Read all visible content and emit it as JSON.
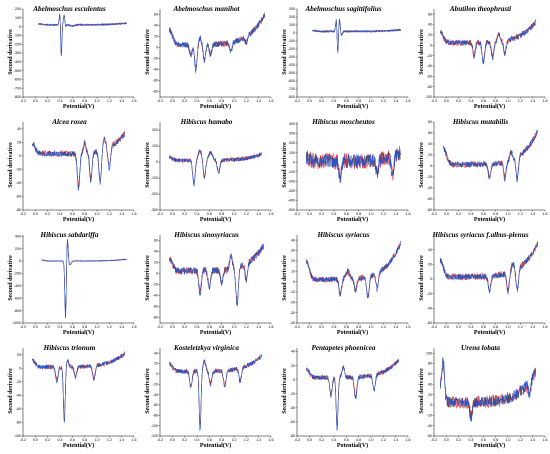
{
  "figure": {
    "ylabel": "Second derivative",
    "xlabel": "Potential(V)",
    "colors": {
      "series_a": "#ff1a1a",
      "series_b": "#1f55d8",
      "series_c": "#333333",
      "axis": "#000000"
    }
  },
  "chart_data": [
    {
      "type": "line",
      "title": "Abelmoschus esculentus",
      "xlabel": "Potential(V)",
      "ylabel": "Second derivative",
      "x_ticks": [
        -0.2,
        0.0,
        0.2,
        0.4,
        0.6,
        0.8,
        1.0,
        1.2,
        1.4,
        1.6
      ],
      "xlim": [
        -0.2,
        1.6
      ],
      "y_ticks": [
        -800,
        -700,
        -600,
        -500,
        -400,
        -300,
        -200,
        -100,
        0,
        100,
        200
      ],
      "ylim": [
        -800,
        200
      ],
      "x_range": [
        0.05,
        1.48
      ],
      "features": [
        {
          "x": 0.42,
          "y": -380,
          "w": 0.01
        },
        {
          "x": 0.4,
          "y": 150,
          "w": 0.012
        },
        {
          "x": 0.47,
          "y": 150,
          "w": 0.012
        },
        {
          "x": 0.48,
          "y": -60,
          "w": 0.012
        },
        {
          "x": 0.6,
          "y": -15,
          "w": 0.03
        }
      ],
      "baseline": 20,
      "slope": 0,
      "end_rise": 20,
      "noise": 10
    },
    {
      "type": "line",
      "title": "Abelmoschus manihot",
      "xlabel": "Potential(V)",
      "ylabel": "Second derivative",
      "x_ticks": [
        -0.2,
        0.0,
        0.2,
        0.4,
        0.6,
        0.8,
        1.0,
        1.2,
        1.4,
        1.6
      ],
      "xlim": [
        -0.2,
        1.6
      ],
      "y_ticks": [
        -80,
        -60,
        -40,
        -20,
        0,
        20,
        40,
        60
      ],
      "ylim": [
        -90,
        70
      ],
      "x_range": [
        -0.05,
        1.5
      ],
      "features": [
        {
          "x": 0.38,
          "y": -45,
          "w": 0.02
        },
        {
          "x": 0.3,
          "y": -20,
          "w": 0.02
        },
        {
          "x": 0.52,
          "y": -28,
          "w": 0.02
        },
        {
          "x": 0.62,
          "y": -18,
          "w": 0.02
        },
        {
          "x": 0.45,
          "y": 12,
          "w": 0.02
        },
        {
          "x": 0.95,
          "y": -15,
          "w": 0.02
        },
        {
          "x": 1.2,
          "y": -12,
          "w": 0.02
        }
      ],
      "baseline": 5,
      "slope": 0,
      "end_rise": 55,
      "noise": 5
    },
    {
      "type": "line",
      "title": "Abelmoschus sagittifolius",
      "xlabel": "Potential(V)",
      "ylabel": "Second derivative",
      "x_ticks": [
        -0.2,
        0.0,
        0.2,
        0.4,
        0.6,
        0.8,
        1.0,
        1.2,
        1.4,
        1.6
      ],
      "xlim": [
        -0.2,
        1.6
      ],
      "y_ticks": [
        -800,
        -700,
        -600,
        -500,
        -400,
        -300,
        -200,
        -100,
        0,
        100,
        200,
        300
      ],
      "ylim": [
        -800,
        300
      ],
      "x_range": [
        0.05,
        1.48
      ],
      "features": [
        {
          "x": 0.46,
          "y": -300,
          "w": 0.01
        },
        {
          "x": 0.44,
          "y": 160,
          "w": 0.012
        },
        {
          "x": 0.49,
          "y": 150,
          "w": 0.012
        },
        {
          "x": 0.52,
          "y": -50,
          "w": 0.015
        }
      ],
      "baseline": 20,
      "slope": 0,
      "end_rise": 20,
      "noise": 12
    },
    {
      "type": "line",
      "title": "Abutilon theophrasti",
      "xlabel": "Potential(V)",
      "ylabel": "Second derivative",
      "x_ticks": [
        -0.2,
        0.0,
        0.2,
        0.4,
        0.6,
        0.8,
        1.0,
        1.2,
        1.4,
        1.6
      ],
      "xlim": [
        -0.2,
        1.6
      ],
      "y_ticks": [
        -100,
        -80,
        -60,
        -40,
        -20,
        0,
        20,
        40,
        60
      ],
      "ylim": [
        -100,
        70
      ],
      "x_range": [
        -0.1,
        1.45
      ],
      "features": [
        {
          "x": 0.6,
          "y": -40,
          "w": 0.02
        },
        {
          "x": 0.45,
          "y": -25,
          "w": 0.02
        },
        {
          "x": 0.75,
          "y": -30,
          "w": 0.02
        },
        {
          "x": 0.95,
          "y": -25,
          "w": 0.02
        },
        {
          "x": 0.85,
          "y": 15,
          "w": 0.02
        }
      ],
      "baseline": 5,
      "slope": 0,
      "end_rise": 40,
      "noise": 5
    },
    {
      "type": "line",
      "title": "Alcea rosea",
      "xlabel": "Potential(V)",
      "ylabel": "Second derivative",
      "x_ticks": [
        -0.2,
        0.0,
        0.2,
        0.4,
        0.6,
        0.8,
        1.0,
        1.2,
        1.4,
        1.6
      ],
      "xlim": [
        -0.2,
        1.6
      ],
      "y_ticks": [
        -80,
        -60,
        -40,
        -20,
        0,
        20,
        40
      ],
      "ylim": [
        -80,
        50
      ],
      "x_range": [
        -0.05,
        1.45
      ],
      "features": [
        {
          "x": 0.7,
          "y": -50,
          "w": 0.02
        },
        {
          "x": 0.9,
          "y": -40,
          "w": 0.02
        },
        {
          "x": 1.05,
          "y": -45,
          "w": 0.02
        },
        {
          "x": 1.2,
          "y": -30,
          "w": 0.02
        },
        {
          "x": 0.8,
          "y": 15,
          "w": 0.02
        },
        {
          "x": 1.12,
          "y": 15,
          "w": 0.02
        }
      ],
      "baseline": 3,
      "slope": 0,
      "end_rise": 30,
      "noise": 4
    },
    {
      "type": "line",
      "title": "Hibiscus hamabo",
      "xlabel": "Potential(V)",
      "ylabel": "Second derivative",
      "x_ticks": [
        -0.2,
        0.0,
        0.2,
        0.4,
        0.6,
        0.8,
        1.0,
        1.2,
        1.4,
        1.6
      ],
      "xlim": [
        -0.2,
        1.6
      ],
      "y_ticks": [
        -300,
        -200,
        -100,
        0,
        100,
        200
      ],
      "ylim": [
        -300,
        250
      ],
      "x_range": [
        -0.05,
        1.45
      ],
      "features": [
        {
          "x": 0.35,
          "y": -150,
          "w": 0.02
        },
        {
          "x": 0.52,
          "y": -110,
          "w": 0.02
        },
        {
          "x": 0.75,
          "y": -80,
          "w": 0.02
        },
        {
          "x": 0.45,
          "y": 60,
          "w": 0.03
        },
        {
          "x": 0.62,
          "y": 50,
          "w": 0.03
        }
      ],
      "baseline": 10,
      "slope": 0,
      "end_rise": 40,
      "noise": 12
    },
    {
      "type": "line",
      "title": "Hibiscus moscheutos",
      "xlabel": "Potential(V)",
      "ylabel": "Second derivative",
      "x_ticks": [
        -0.2,
        0.0,
        0.2,
        0.4,
        0.6,
        0.8,
        1.0,
        1.2,
        1.4,
        1.6
      ],
      "xlim": [
        -0.2,
        1.6
      ],
      "y_ticks": [
        -500,
        -400,
        -300,
        -200,
        -100,
        0,
        100,
        200,
        300,
        400
      ],
      "ylim": [
        -500,
        420
      ],
      "x_range": [
        -0.05,
        1.48
      ],
      "features": [
        {
          "x": 0.5,
          "y": -180,
          "w": 0.02
        },
        {
          "x": 1.1,
          "y": -150,
          "w": 0.02
        },
        {
          "x": 1.35,
          "y": -200,
          "w": 0.02
        }
      ],
      "baseline": 10,
      "slope": 0,
      "end_rise": 80,
      "noise": 70
    },
    {
      "type": "line",
      "title": "Hibiscus mutabilis",
      "xlabel": "Potential(V)",
      "ylabel": "Second derivative",
      "x_ticks": [
        -0.2,
        0.0,
        0.2,
        0.4,
        0.6,
        0.8,
        1.0,
        1.2,
        1.4,
        1.6
      ],
      "xlim": [
        -0.2,
        1.6
      ],
      "y_ticks": [
        -80,
        -60,
        -40,
        -20,
        0,
        20,
        40,
        60,
        80
      ],
      "ylim": [
        -80,
        80
      ],
      "x_range": [
        -0.05,
        1.48
      ],
      "features": [
        {
          "x": 0.7,
          "y": -25,
          "w": 0.02
        },
        {
          "x": 0.95,
          "y": -30,
          "w": 0.02
        },
        {
          "x": 1.15,
          "y": -40,
          "w": 0.02
        },
        {
          "x": 1.05,
          "y": 15,
          "w": 0.02
        }
      ],
      "baseline": 3,
      "slope": 0,
      "end_rise": 60,
      "noise": 5
    },
    {
      "type": "line",
      "title": "Hibiscus sabdariffa",
      "xlabel": "Potential(V)",
      "ylabel": "Second derivative",
      "x_ticks": [
        -0.2,
        0.0,
        0.2,
        0.4,
        0.6,
        0.8,
        1.0,
        1.2,
        1.4,
        1.6
      ],
      "xlim": [
        -0.2,
        1.6
      ],
      "y_ticks": [
        -1000,
        -800,
        -600,
        -400,
        -200,
        0,
        200,
        400
      ],
      "ylim": [
        -1000,
        420
      ],
      "x_range": [
        0.1,
        1.48
      ],
      "features": [
        {
          "x": 0.49,
          "y": -900,
          "w": 0.012
        },
        {
          "x": 0.52,
          "y": 380,
          "w": 0.012
        },
        {
          "x": 0.56,
          "y": -60,
          "w": 0.02
        }
      ],
      "baseline": 0,
      "slope": 0,
      "end_rise": 30,
      "noise": 8
    },
    {
      "type": "line",
      "title": "Hibiscus sinosyriacus",
      "xlabel": "Potential(V)",
      "ylabel": "Second derivative",
      "x_ticks": [
        -0.2,
        0.0,
        0.2,
        0.4,
        0.6,
        0.8,
        1.0,
        1.2,
        1.4,
        1.6
      ],
      "xlim": [
        -0.2,
        1.6
      ],
      "y_ticks": [
        -80,
        -60,
        -40,
        -20,
        0,
        20,
        40,
        60
      ],
      "ylim": [
        -90,
        70
      ],
      "x_range": [
        -0.05,
        1.48
      ],
      "features": [
        {
          "x": 0.45,
          "y": -40,
          "w": 0.02
        },
        {
          "x": 0.6,
          "y": -30,
          "w": 0.02
        },
        {
          "x": 0.8,
          "y": -25,
          "w": 0.02
        },
        {
          "x": 1.05,
          "y": -65,
          "w": 0.02
        },
        {
          "x": 0.95,
          "y": 25,
          "w": 0.02
        },
        {
          "x": 1.2,
          "y": -30,
          "w": 0.02
        }
      ],
      "baseline": 5,
      "slope": 0,
      "end_rise": 45,
      "noise": 6
    },
    {
      "type": "line",
      "title": "Hibiscus syriacus",
      "xlabel": "Potential(V)",
      "ylabel": "Second derivative",
      "x_ticks": [
        -0.2,
        0.0,
        0.2,
        0.4,
        0.6,
        0.8,
        1.0,
        1.2,
        1.4,
        1.6
      ],
      "xlim": [
        -0.2,
        1.6
      ],
      "y_ticks": [
        -40,
        -30,
        -20,
        -10,
        0,
        10,
        20,
        30,
        40
      ],
      "ylim": [
        -40,
        45
      ],
      "x_range": [
        -0.05,
        1.48
      ],
      "features": [
        {
          "x": 0.5,
          "y": -15,
          "w": 0.02
        },
        {
          "x": 0.75,
          "y": -12,
          "w": 0.02
        },
        {
          "x": 0.95,
          "y": -20,
          "w": 0.02
        },
        {
          "x": 1.1,
          "y": -15,
          "w": 0.02
        },
        {
          "x": 0.62,
          "y": 8,
          "w": 0.03
        }
      ],
      "baseline": 2,
      "slope": 0,
      "end_rise": 35,
      "noise": 2.5
    },
    {
      "type": "line",
      "title": "Hibiscus syriacus f.albus-plenus",
      "xlabel": "Potential(V)",
      "ylabel": "Second derivative",
      "x_ticks": [
        -0.2,
        0.0,
        0.2,
        0.4,
        0.6,
        0.8,
        1.0,
        1.2,
        1.4,
        1.6
      ],
      "xlim": [
        -0.2,
        1.6
      ],
      "y_ticks": [
        -60,
        -40,
        -20,
        0,
        20,
        40
      ],
      "ylim": [
        -60,
        60
      ],
      "x_range": [
        -0.1,
        1.48
      ],
      "features": [
        {
          "x": 0.7,
          "y": -20,
          "w": 0.02
        },
        {
          "x": 1.0,
          "y": -25,
          "w": 0.02
        },
        {
          "x": 1.15,
          "y": -30,
          "w": 0.02
        },
        {
          "x": 1.08,
          "y": 10,
          "w": 0.02
        }
      ],
      "baseline": 3,
      "slope": 0,
      "end_rise": 45,
      "noise": 4
    },
    {
      "type": "line",
      "title": "Hibiscus trionum",
      "xlabel": "Potential(V)",
      "ylabel": "Second derivative",
      "x_ticks": [
        -0.2,
        0.0,
        0.2,
        0.4,
        0.6,
        0.8,
        1.0,
        1.2,
        1.4,
        1.6
      ],
      "xlim": [
        -0.2,
        1.6
      ],
      "y_ticks": [
        -100,
        -80,
        -60,
        -40,
        -20,
        0,
        20
      ],
      "ylim": [
        -100,
        30
      ],
      "x_range": [
        -0.05,
        1.45
      ],
      "features": [
        {
          "x": 0.47,
          "y": -80,
          "w": 0.015
        },
        {
          "x": 0.35,
          "y": -20,
          "w": 0.02
        },
        {
          "x": 0.65,
          "y": -15,
          "w": 0.02
        },
        {
          "x": 0.95,
          "y": -20,
          "w": 0.02
        },
        {
          "x": 0.52,
          "y": 10,
          "w": 0.02
        }
      ],
      "baseline": 2,
      "slope": 0,
      "end_rise": 20,
      "noise": 3
    },
    {
      "type": "line",
      "title": "Kosteletzkya virginica",
      "xlabel": "Potential(V)",
      "ylabel": "Second derivative",
      "x_ticks": [
        -0.2,
        0.0,
        0.2,
        0.4,
        0.6,
        0.8,
        1.0,
        1.2,
        1.4,
        1.6
      ],
      "xlim": [
        -0.2,
        1.6
      ],
      "y_ticks": [
        -120,
        -100,
        -80,
        -60,
        -40,
        -20,
        0,
        20,
        40
      ],
      "ylim": [
        -120,
        50
      ],
      "x_range": [
        -0.05,
        1.45
      ],
      "features": [
        {
          "x": 0.45,
          "y": -110,
          "w": 0.015
        },
        {
          "x": 0.3,
          "y": -30,
          "w": 0.02
        },
        {
          "x": 0.62,
          "y": -25,
          "w": 0.02
        },
        {
          "x": 0.85,
          "y": -30,
          "w": 0.02
        },
        {
          "x": 1.1,
          "y": -25,
          "w": 0.02
        },
        {
          "x": 0.52,
          "y": 20,
          "w": 0.02
        }
      ],
      "baseline": 5,
      "slope": 0,
      "end_rise": 30,
      "noise": 4
    },
    {
      "type": "line",
      "title": "Pentapetes phoenicea",
      "xlabel": "Potential(V)",
      "ylabel": "Second derivative",
      "x_ticks": [
        -0.2,
        0.0,
        0.2,
        0.4,
        0.6,
        0.8,
        1.0,
        1.2,
        1.4,
        1.6
      ],
      "xlim": [
        -0.2,
        1.6
      ],
      "y_ticks": [
        -80,
        -60,
        -40,
        -20,
        0,
        20,
        40
      ],
      "ylim": [
        -80,
        45
      ],
      "x_range": [
        -0.05,
        1.45
      ],
      "features": [
        {
          "x": 0.45,
          "y": -70,
          "w": 0.015
        },
        {
          "x": 0.35,
          "y": -25,
          "w": 0.02
        },
        {
          "x": 0.75,
          "y": -30,
          "w": 0.02
        },
        {
          "x": 1.05,
          "y": -20,
          "w": 0.02
        },
        {
          "x": 0.55,
          "y": 15,
          "w": 0.02
        }
      ],
      "baseline": 3,
      "slope": 0,
      "end_rise": 25,
      "noise": 3
    },
    {
      "type": "line",
      "title": "Urena lobata",
      "xlabel": "Potential(V)",
      "ylabel": "Second derivative",
      "x_ticks": [
        -0.2,
        0.0,
        0.2,
        0.4,
        0.6,
        0.8,
        1.0,
        1.2,
        1.4,
        1.6
      ],
      "xlim": [
        -0.2,
        1.6
      ],
      "y_ticks": [
        -60,
        -40,
        -20,
        0,
        20,
        40,
        60,
        80,
        100
      ],
      "ylim": [
        -60,
        110
      ],
      "x_range": [
        -0.1,
        1.45
      ],
      "features": [
        {
          "x": -0.05,
          "y": 60,
          "w": 0.02
        },
        {
          "x": 0.4,
          "y": -30,
          "w": 0.02
        },
        {
          "x": 1.35,
          "y": -25,
          "w": 0.02
        }
      ],
      "baseline": 5,
      "slope": 0,
      "end_rise": 60,
      "noise": 10
    }
  ]
}
